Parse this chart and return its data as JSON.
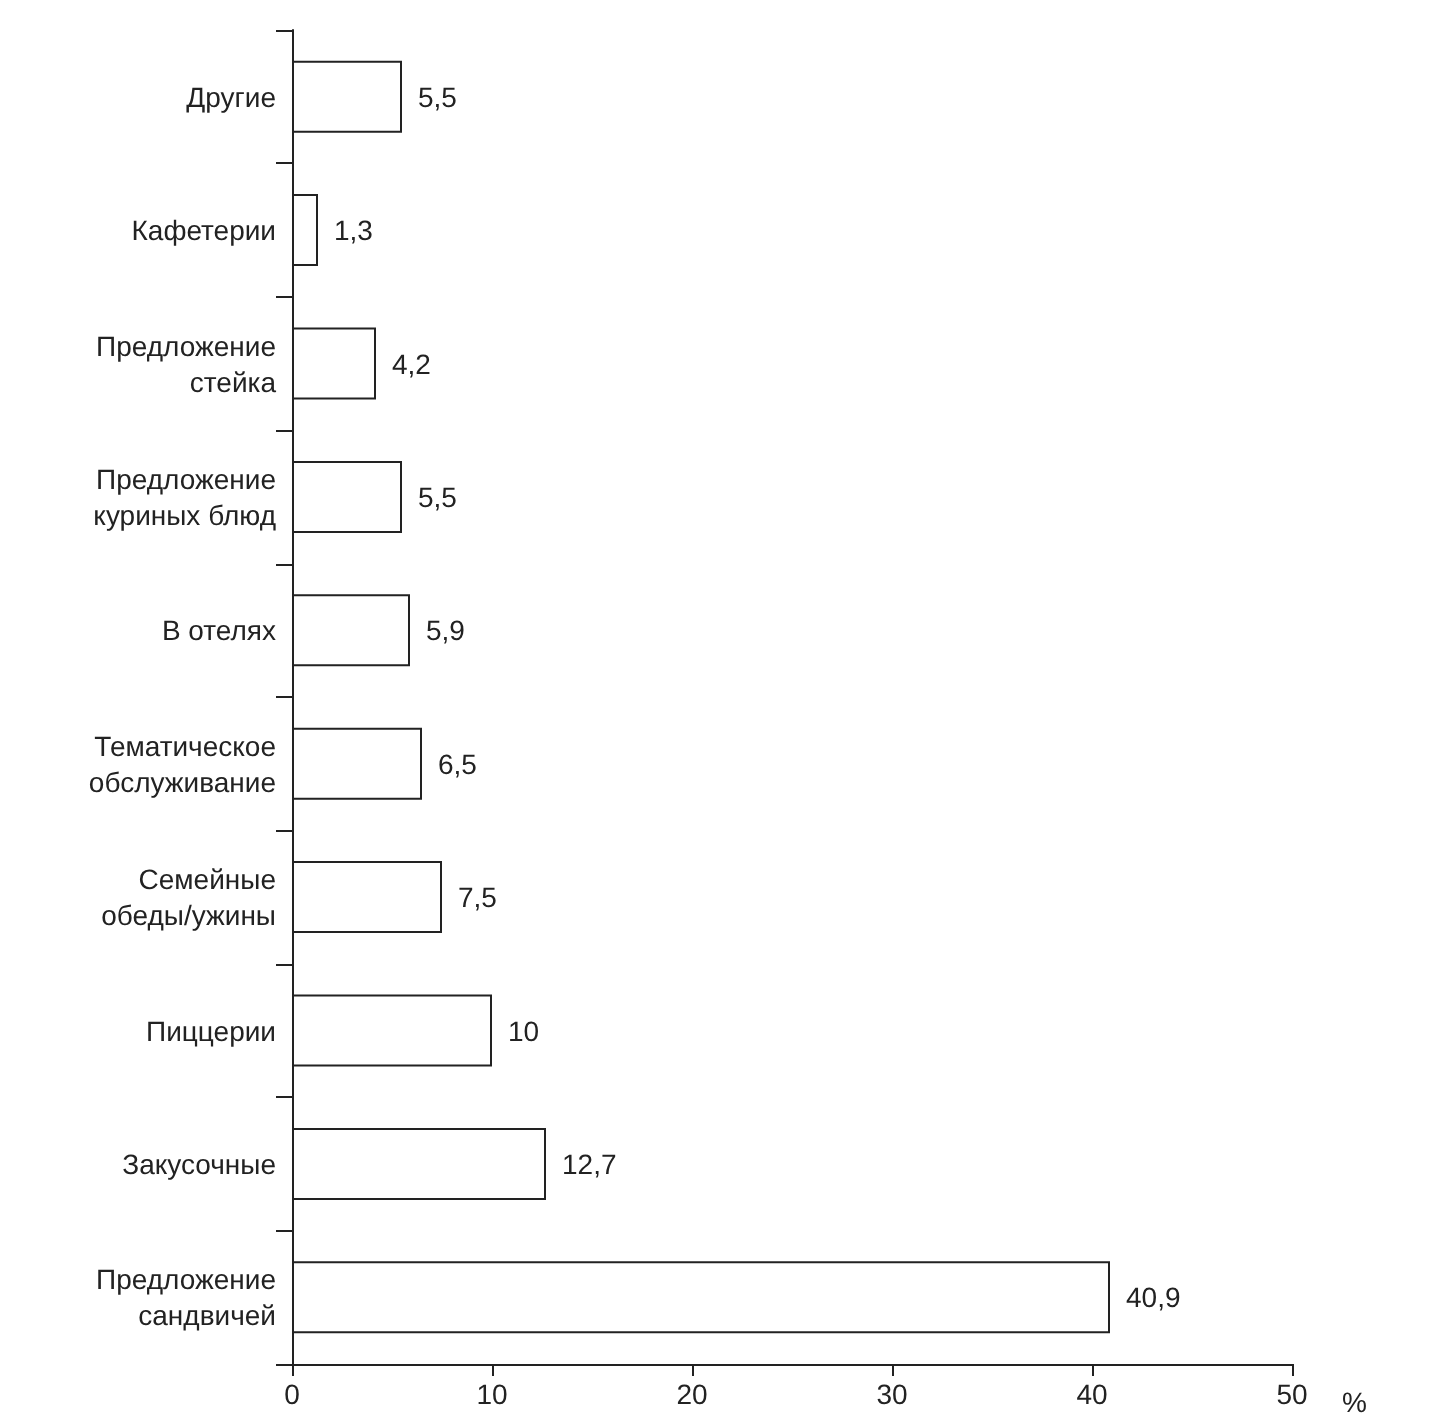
{
  "chart_data": {
    "type": "bar",
    "orientation": "horizontal",
    "xlabel": "%",
    "categories": [
      "Другие",
      "Кафетерии",
      "Предложение стейка",
      "Предложение куриных блюд",
      "В отелях",
      "Тематическое обслуживание",
      "Семейные обеды/ужины",
      "Пиццерии",
      "Закусочные",
      "Предложение сандвичей"
    ],
    "values": [
      5.5,
      1.3,
      4.2,
      5.5,
      5.9,
      6.5,
      7.5,
      10,
      12.7,
      40.9
    ],
    "value_labels": [
      "5,5",
      "1,3",
      "4,2",
      "5,5",
      "5,9",
      "6,5",
      "7,5",
      "10",
      "12,7",
      "40,9"
    ],
    "color": "#ffffff",
    "xlim": [
      0,
      50
    ],
    "xticks": [
      0,
      10,
      20,
      30,
      40,
      50
    ],
    "grid": false
  }
}
